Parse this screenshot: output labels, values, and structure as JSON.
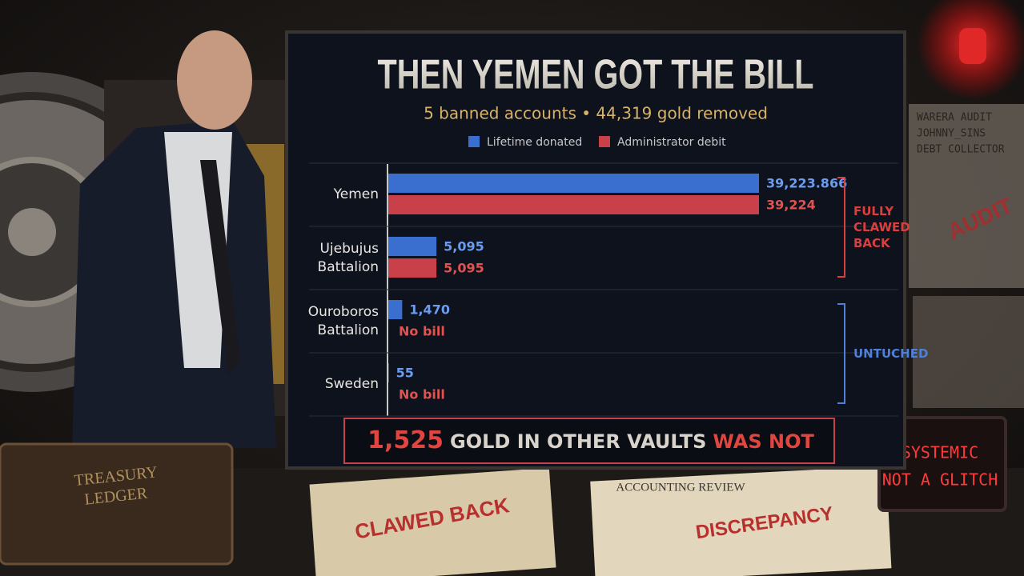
{
  "chart_data": {
    "type": "hbar",
    "title": "THEN YEMEN GOT THE BILL",
    "subtitle": "5 banned accounts • 44,319 gold removed",
    "categories": [
      "Yemen",
      "Ujebujus Battalion",
      "Ouroboros Battalion",
      "Sweden"
    ],
    "series": [
      {
        "name": "Lifetime donated",
        "color": "#3a6fd0",
        "label_color": "#6b9cf0",
        "values": [
          39223.866,
          5095,
          1470,
          55
        ],
        "value_labels": [
          "39,223.866",
          "5,095",
          "1,470",
          "55"
        ]
      },
      {
        "name": "Administrator debit",
        "color": "#c8404a",
        "label_color": "#e2524f",
        "values": [
          39224,
          5095,
          null,
          null
        ],
        "value_labels": [
          "39,224",
          "5,095",
          "No bill",
          "No bill"
        ]
      }
    ],
    "xlim": [
      0,
      39224
    ],
    "groups": [
      {
        "label": "FULLY CLAWED BACK",
        "color": "#d8403f",
        "categories": [
          "Yemen",
          "Ujebujus Battalion"
        ]
      },
      {
        "label": "UNTUCHED",
        "color": "#4f7fd8",
        "categories": [
          "Ouroboros Battalion",
          "Sweden"
        ]
      }
    ],
    "footer": [
      {
        "text": "1,525",
        "color": "#e0453f"
      },
      {
        "text": "GOLD IN OTHER VAULTS",
        "color": "#d8d4cc"
      },
      {
        "text": "WAS NOT BILLED.",
        "color": "#e0453f"
      }
    ]
  },
  "scene": {
    "board": [
      "WARERA AUDIT",
      "JOHNNY_SINS",
      "DEBT COLLECTOR"
    ],
    "audit_stamp": "AUDIT",
    "sign": [
      "SYSTEMIC",
      "NOT A GLITCH"
    ],
    "ledger": [
      "TREASURY",
      "LEDGER"
    ],
    "stamp_left": "CLAWED BACK",
    "review_title": "ACCOUNTING REVIEW",
    "stamp_right": "DISCREPANCY"
  }
}
